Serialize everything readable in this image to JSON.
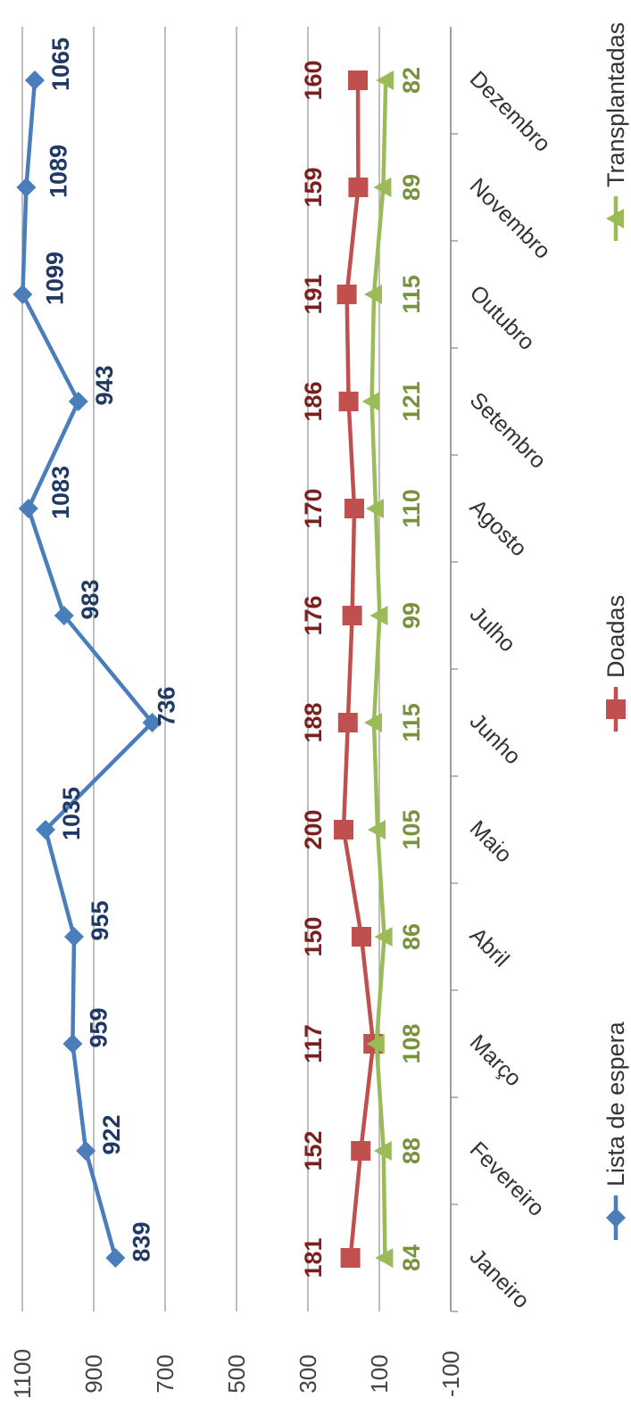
{
  "chart_data": {
    "type": "line",
    "orientation": "rotated-90-clockwise",
    "categories": [
      "Janeiro",
      "Fevereiro",
      "Março",
      "Abril",
      "Maio",
      "Junho",
      "Julho",
      "Agosto",
      "Setembro",
      "Outubro",
      "Novembro",
      "Dezembro"
    ],
    "ylim": [
      -100,
      1100
    ],
    "yticks": [
      -100,
      100,
      300,
      500,
      700,
      900,
      1100
    ],
    "grid": true,
    "legend_position": "bottom",
    "series": [
      {
        "name": "Lista de espera",
        "color": "#4a7ebb",
        "label_color": "#1f3864",
        "marker": "diamond",
        "values": [
          839,
          922,
          959,
          955,
          1035,
          736,
          983,
          1083,
          943,
          1099,
          1089,
          1065
        ]
      },
      {
        "name": "Doadas",
        "color": "#c0504d",
        "label_color": "#7b1f1f",
        "marker": "square",
        "values": [
          181,
          152,
          117,
          150,
          200,
          188,
          176,
          170,
          186,
          191,
          159,
          160
        ]
      },
      {
        "name": "Transplantadas",
        "color": "#9bbb59",
        "label_color": "#77933c",
        "marker": "triangle",
        "values": [
          84,
          88,
          108,
          86,
          105,
          115,
          99,
          110,
          121,
          115,
          89,
          82
        ]
      }
    ]
  }
}
